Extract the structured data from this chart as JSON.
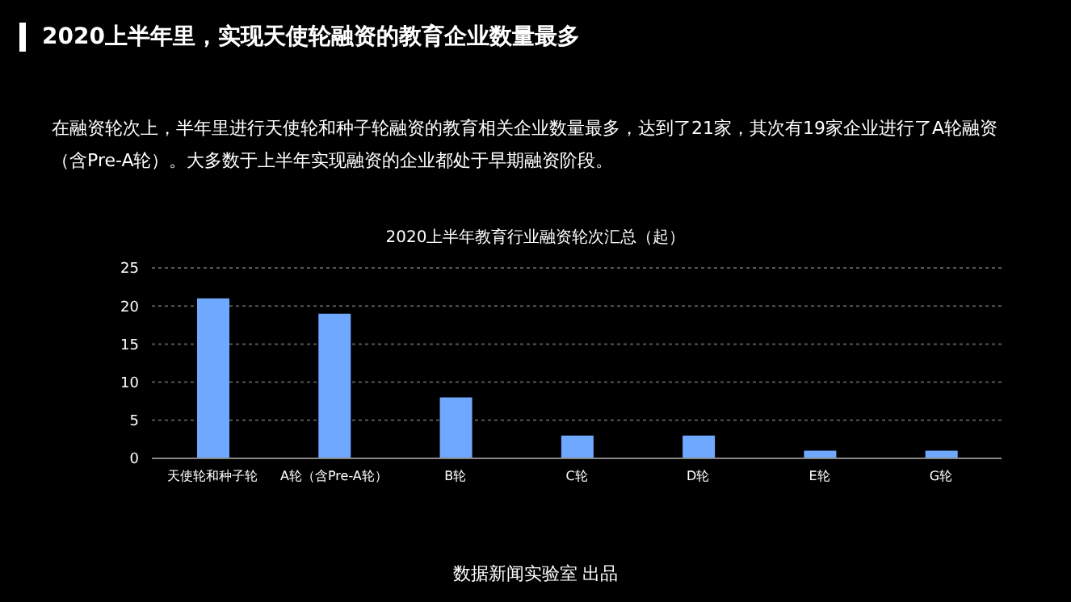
{
  "chart_data": {
    "type": "bar",
    "title": "2020上半年里，实现天使轮融资的教育企业数量最多",
    "subtitle": "在融资轮次上，半年里进行天使轮和种子轮融资的教育相关企业数量最多，达到了21家，其次有19家企业进行了A轮融资（含Pre-A轮）。大多数于上半年实现融资的企业都处于早期融资阶段。",
    "annotations": [
      "2020上半年教育行业融资轮次汇总（起）",
      "数据新闻实验室 出品"
    ],
    "categories": [
      "天使轮和种子轮",
      "A轮（含Pre-A轮）",
      "B轮",
      "C轮",
      "D轮",
      "E轮",
      "G轮"
    ],
    "values": [
      21,
      19,
      8,
      3,
      3,
      1,
      1
    ],
    "color": "#6fa8ff",
    "ylim": [
      0,
      25
    ],
    "yticks": [
      0,
      5,
      10,
      15,
      20,
      25
    ],
    "grid": "y"
  }
}
